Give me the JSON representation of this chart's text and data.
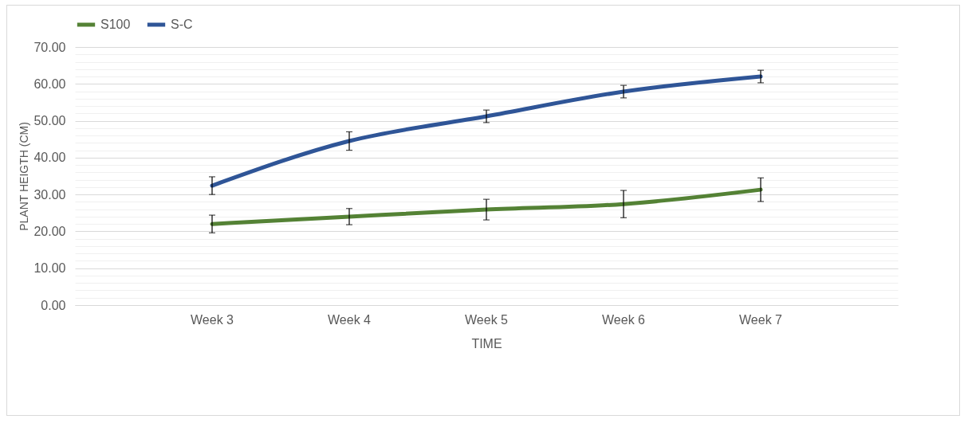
{
  "chart_data": {
    "type": "line",
    "xlabel": "TIME",
    "ylabel": "PLANT HEIGTH (CM)",
    "categories": [
      "Week 3",
      "Week 4",
      "Week 5",
      "Week 6",
      "Week 7"
    ],
    "series": [
      {
        "name": "S100",
        "color": "#548235",
        "values": [
          22.0,
          24.0,
          25.9,
          27.4,
          31.3
        ],
        "errors": [
          2.4,
          2.2,
          2.8,
          3.7,
          3.2
        ]
      },
      {
        "name": "S-C",
        "color": "#2f5597",
        "values": [
          32.4,
          44.5,
          51.2,
          57.9,
          62.0
        ],
        "errors": [
          2.4,
          2.5,
          1.7,
          1.7,
          1.7
        ]
      }
    ],
    "ylim": [
      0,
      70
    ],
    "yticks": [
      {
        "value": 0,
        "label": "0.00"
      },
      {
        "value": 2,
        "label": null
      },
      {
        "value": 4,
        "label": null
      },
      {
        "value": 6,
        "label": null
      },
      {
        "value": 8,
        "label": null
      },
      {
        "value": 10,
        "label": "10.00"
      },
      {
        "value": 12,
        "label": null
      },
      {
        "value": 14,
        "label": null
      },
      {
        "value": 16,
        "label": null
      },
      {
        "value": 18,
        "label": null
      },
      {
        "value": 20,
        "label": "20.00"
      },
      {
        "value": 22,
        "label": null
      },
      {
        "value": 24,
        "label": null
      },
      {
        "value": 26,
        "label": null
      },
      {
        "value": 28,
        "label": null
      },
      {
        "value": 30,
        "label": "30.00"
      },
      {
        "value": 32,
        "label": null
      },
      {
        "value": 34,
        "label": null
      },
      {
        "value": 36,
        "label": null
      },
      {
        "value": 38,
        "label": null
      },
      {
        "value": 40,
        "label": "40.00"
      },
      {
        "value": 42,
        "label": null
      },
      {
        "value": 44,
        "label": null
      },
      {
        "value": 46,
        "label": null
      },
      {
        "value": 48,
        "label": null
      },
      {
        "value": 50,
        "label": "50.00"
      },
      {
        "value": 52,
        "label": null
      },
      {
        "value": 54,
        "label": null
      },
      {
        "value": 56,
        "label": null
      },
      {
        "value": 58,
        "label": null
      },
      {
        "value": 60,
        "label": "60.00"
      },
      {
        "value": 62,
        "label": null
      },
      {
        "value": 64,
        "label": null
      },
      {
        "value": 66,
        "label": null
      },
      {
        "value": 68,
        "label": null
      },
      {
        "value": 70,
        "label": "70.00"
      }
    ],
    "grid": "y",
    "legend": "top",
    "marker": "none",
    "line_style": "solid"
  }
}
